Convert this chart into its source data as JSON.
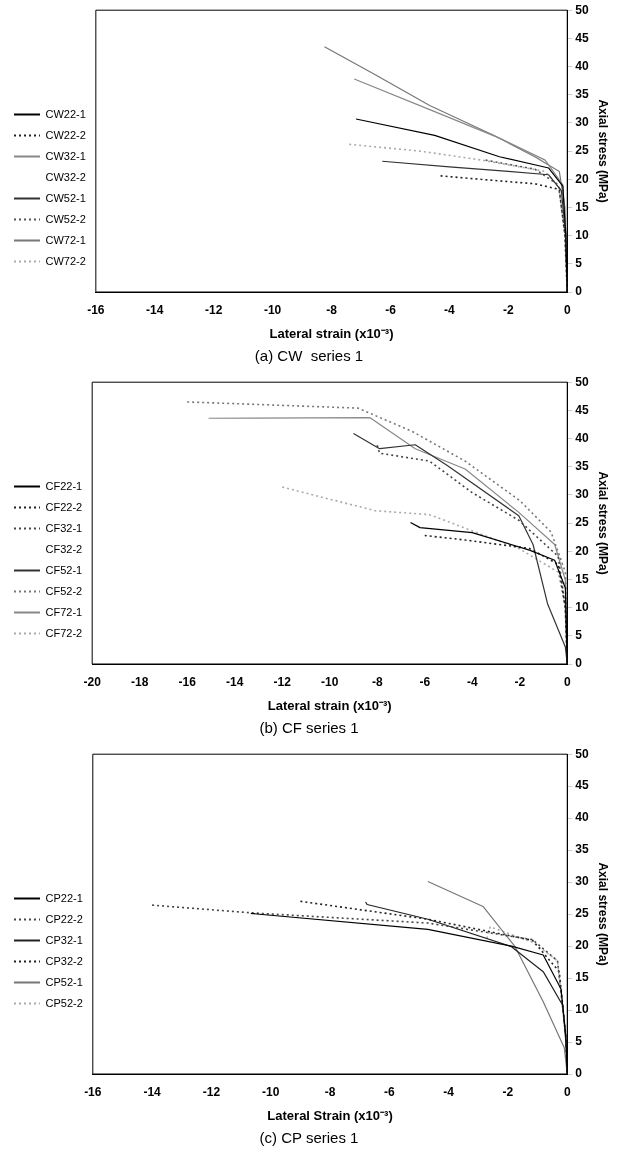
{
  "chart_data": [
    {
      "type": "line",
      "title": "(a) CW  series 1",
      "xlabel": "Lateral strain (x10⁻³)",
      "ylabel": "Axial stress (MPa)",
      "xlim": [
        -16,
        0
      ],
      "xticks": [
        -16,
        -14,
        -12,
        -10,
        -8,
        -6,
        -4,
        -2,
        0
      ],
      "ylim": [
        0,
        50
      ],
      "yticks": [
        0,
        5,
        10,
        15,
        20,
        25,
        30,
        35,
        40,
        45,
        50
      ],
      "grid": false,
      "legend": "left",
      "marker": "none",
      "series": [
        {
          "name": "CW22-1",
          "color": "#000000",
          "line_style": "solid",
          "x": [
            -7.17,
            -4.5,
            -2.3,
            -0.63,
            -0.15,
            -0.05,
            0
          ],
          "values": [
            30.7,
            27.8,
            24,
            22,
            18.8,
            10,
            0
          ]
        },
        {
          "name": "CW22-2",
          "color": "#222222",
          "line_style": "dotted",
          "x": [
            -4.3,
            -2.5,
            -1.1,
            -0.27,
            -0.08,
            0
          ],
          "values": [
            20.6,
            19.8,
            19.2,
            18.2,
            10,
            0
          ]
        },
        {
          "name": "CW32-1",
          "color": "#888888",
          "line_style": "solid",
          "x": [
            -7.23,
            -4.5,
            -2.3,
            -0.75,
            -0.15,
            -0.04,
            0
          ],
          "values": [
            37.8,
            32,
            27.3,
            23.4,
            19,
            10,
            0
          ]
        },
        {
          "name": "CW32-2"
        },
        {
          "name": "CW52-1",
          "color": "#333333",
          "line_style": "solid",
          "x": [
            -6.28,
            -4,
            -2,
            -0.63,
            -0.2,
            -0.05,
            0
          ],
          "values": [
            23.2,
            22.2,
            21.4,
            20.8,
            18,
            10,
            0
          ]
        },
        {
          "name": "CW52-2",
          "color": "#555555",
          "line_style": "dotted",
          "x": [
            -2.77,
            -1.1,
            -0.3,
            -0.07,
            0
          ],
          "values": [
            23.4,
            21.8,
            19,
            10,
            0
          ]
        },
        {
          "name": "CW72-1",
          "color": "#777777",
          "line_style": "solid",
          "x": [
            -8.24,
            -6.5,
            -4.67,
            -2.5,
            -1.1,
            -0.27,
            -0.08,
            0
          ],
          "values": [
            43.5,
            38.5,
            33.1,
            27.8,
            24,
            21.4,
            15,
            0
          ]
        },
        {
          "name": "CW72-2",
          "color": "#aaaaaa",
          "line_style": "dotted",
          "x": [
            -7.4,
            -5,
            -2.9,
            -0.75,
            -0.2,
            -0.05,
            0
          ],
          "values": [
            26.2,
            25,
            23.4,
            21.4,
            18,
            10,
            0
          ]
        }
      ]
    },
    {
      "type": "line",
      "title": "(b) CF series 1",
      "xlabel": "Lateral strain (x10⁻³)",
      "ylabel": "Axial stress (MPa)",
      "xlim": [
        -20,
        0
      ],
      "xticks": [
        -20,
        -18,
        -16,
        -14,
        -12,
        -10,
        -8,
        -6,
        -4,
        -2,
        0
      ],
      "ylim": [
        0,
        50
      ],
      "yticks": [
        0,
        5,
        10,
        15,
        20,
        25,
        30,
        35,
        40,
        45,
        50
      ],
      "grid": false,
      "legend": "left",
      "marker": "none",
      "series": [
        {
          "name": "CF22-1",
          "color": "#000000",
          "line_style": "solid",
          "x": [
            -6.6,
            -6.2,
            -4.0,
            -1.59,
            -0.53,
            -0.08,
            0
          ],
          "values": [
            25.1,
            24.2,
            23.3,
            20.2,
            18.4,
            13.5,
            0
          ]
        },
        {
          "name": "CF22-2",
          "color": "#222222",
          "line_style": "dotted",
          "x": [
            -6.0,
            -4.3,
            -1.59,
            -0.38,
            -0.08,
            0
          ],
          "values": [
            22.8,
            22,
            20.5,
            17.7,
            10,
            0
          ]
        },
        {
          "name": "CF32-1",
          "color": "#444444",
          "line_style": "dotted",
          "x": [
            -8.0,
            -7.9,
            -5.8,
            -4.0,
            -2.04,
            -0.38,
            -0.08,
            0
          ],
          "values": [
            38.8,
            37.4,
            36,
            30.4,
            25.5,
            19.1,
            10,
            0
          ]
        },
        {
          "name": "CF32-2"
        },
        {
          "name": "CF52-1",
          "color": "#333333",
          "line_style": "solid",
          "x": [
            -9.0,
            -7.9,
            -6.4,
            -5.05,
            -2.04,
            -1.44,
            -0.83,
            -0.08,
            0
          ],
          "values": [
            40.9,
            38.2,
            38.9,
            35.2,
            26.3,
            21.2,
            10.7,
            3,
            0
          ]
        },
        {
          "name": "CF52-2",
          "color": "#777777",
          "line_style": "dotted",
          "x": [
            -16.0,
            -8.8,
            -6.5,
            -4.3,
            -2.0,
            -0.68,
            -0.08,
            0
          ],
          "values": [
            46.5,
            45.4,
            41.2,
            36,
            29,
            23.4,
            16.3,
            0
          ]
        },
        {
          "name": "CF72-1",
          "color": "#888888",
          "line_style": "solid",
          "x": [
            -15.1,
            -8.3,
            -6.4,
            -4.3,
            -2.04,
            -0.53,
            -0.08,
            0
          ],
          "values": [
            43.6,
            43.7,
            38.2,
            34.6,
            26.9,
            21.2,
            14.9,
            0
          ]
        },
        {
          "name": "CF72-2",
          "color": "#aaaaaa",
          "line_style": "dotted",
          "x": [
            -12.0,
            -8.1,
            -5.8,
            -2.04,
            -0.38,
            -0.08,
            0
          ],
          "values": [
            31.4,
            27.2,
            26.5,
            20.5,
            16.3,
            10,
            0
          ]
        }
      ]
    },
    {
      "type": "line",
      "title": "(c) CP series 1",
      "xlabel": "Lateral Strain (x10⁻³)",
      "ylabel": "Axial stress (MPa)",
      "xlim": [
        -16,
        0
      ],
      "xticks": [
        -16,
        -14,
        -12,
        -10,
        -8,
        -6,
        -4,
        -2,
        0
      ],
      "ylim": [
        0,
        50
      ],
      "yticks": [
        0,
        5,
        10,
        15,
        20,
        25,
        30,
        35,
        40,
        45,
        50
      ],
      "grid": false,
      "legend": "left",
      "marker": "none",
      "series": [
        {
          "name": "CP22-1",
          "color": "#000000",
          "line_style": "solid",
          "x": [
            -10.67,
            -4.7,
            -1.88,
            -0.81,
            -0.21,
            -0.05,
            0
          ],
          "values": [
            25.1,
            22.6,
            20,
            18.6,
            13.3,
            6,
            0
          ]
        },
        {
          "name": "CP22-2",
          "color": "#444444",
          "line_style": "dotted",
          "x": [
            -14.0,
            -10.67,
            -4.7,
            -1.17,
            -0.33,
            -0.05,
            0
          ],
          "values": [
            26.4,
            25.2,
            23.6,
            21,
            17.7,
            6,
            0
          ]
        },
        {
          "name": "CP32-1",
          "color": "#222222",
          "line_style": "solid",
          "x": [
            -6.8,
            -6.75,
            -4.7,
            -1.88,
            -0.81,
            -0.15,
            -0.03,
            0
          ],
          "values": [
            26.9,
            26.5,
            24.2,
            19.9,
            16,
            10.7,
            4,
            0
          ]
        },
        {
          "name": "CP32-2",
          "color": "#222222",
          "line_style": "dotted",
          "x": [
            -9.0,
            -4.7,
            -1.17,
            -0.27,
            -0.05,
            0
          ],
          "values": [
            27,
            24.2,
            20.9,
            16,
            6,
            0
          ]
        },
        {
          "name": "CP52-1",
          "color": "#777777",
          "line_style": "solid",
          "x": [
            -4.7,
            -2.84,
            -1.76,
            -0.81,
            -0.1,
            0
          ],
          "values": [
            30.1,
            26.2,
            19.9,
            11.3,
            4.1,
            0
          ]
        },
        {
          "name": "CP52-2",
          "color": "#aaaaaa",
          "line_style": "dotted",
          "x": [
            -2.71,
            -2.6,
            -1.17,
            -0.33,
            -0.05,
            0
          ],
          "values": [
            21.2,
            23,
            20.6,
            17.7,
            6,
            0
          ]
        }
      ]
    }
  ]
}
